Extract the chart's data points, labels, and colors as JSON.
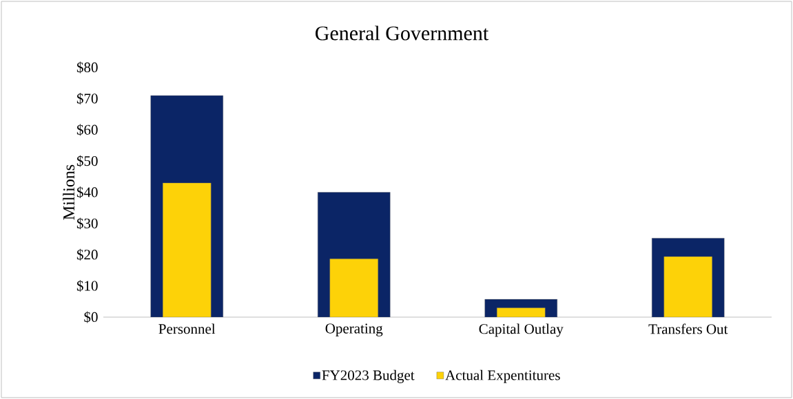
{
  "chart_data": {
    "type": "bar",
    "title": "General Government",
    "ylabel": "Millions",
    "categories": [
      "Personnel",
      "Operating",
      "Capital Outlay",
      "Transfers Out"
    ],
    "series": [
      {
        "name": "FY2023 Budget",
        "color": "#0b2566",
        "values": [
          71,
          40,
          5.7,
          25.3
        ]
      },
      {
        "name": "Actual Expentitures",
        "color": "#fdd208",
        "values": [
          43,
          18.7,
          3,
          19.4
        ]
      }
    ],
    "ylim": [
      0,
      80
    ],
    "yticks": [
      {
        "value": 0,
        "label": "$0"
      },
      {
        "value": 10,
        "label": "$10"
      },
      {
        "value": 20,
        "label": "$20"
      },
      {
        "value": 30,
        "label": "$30"
      },
      {
        "value": 40,
        "label": "$40"
      },
      {
        "value": 50,
        "label": "$50"
      },
      {
        "value": 60,
        "label": "$60"
      },
      {
        "value": 70,
        "label": "$70"
      },
      {
        "value": 80,
        "label": "$80"
      }
    ],
    "grid": false,
    "legend": "bottom"
  }
}
